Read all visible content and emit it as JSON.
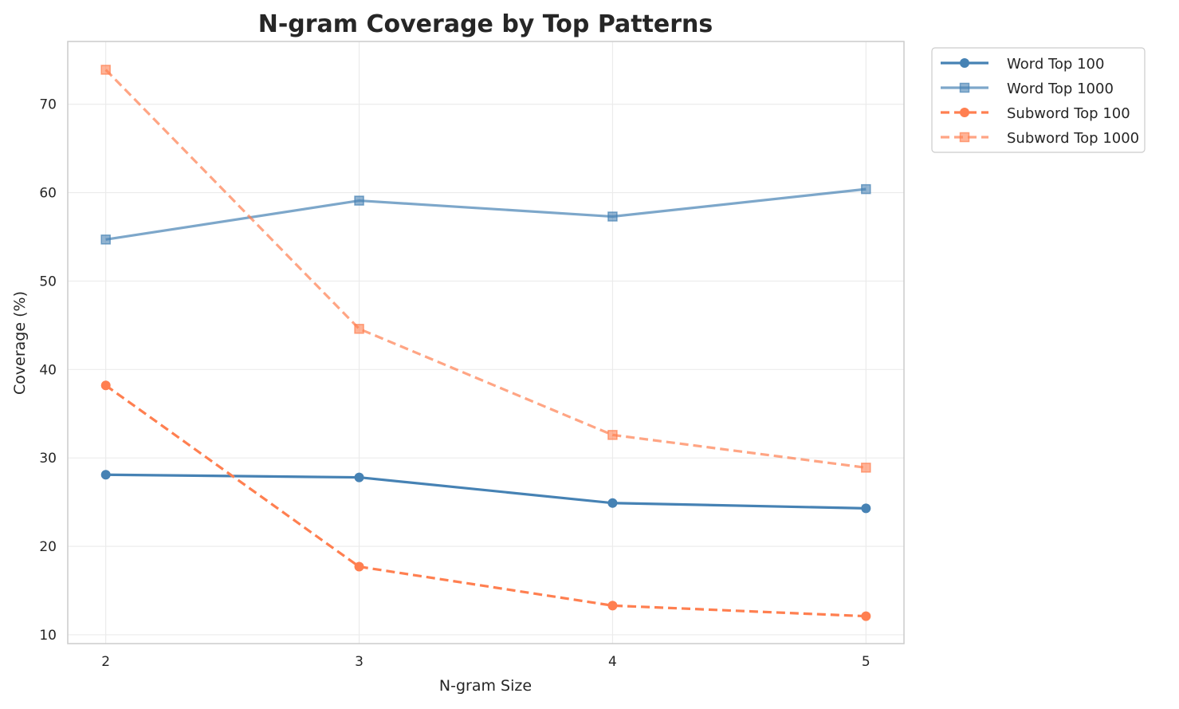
{
  "chart_data": {
    "type": "line",
    "title": "N-gram Coverage by Top Patterns",
    "xlabel": "N-gram Size",
    "ylabel": "Coverage (%)",
    "x": [
      2,
      3,
      4,
      5
    ],
    "xticks": [
      "2",
      "3",
      "4",
      "5"
    ],
    "yticks": [
      "10",
      "20",
      "30",
      "40",
      "50",
      "60",
      "70"
    ],
    "xlim": [
      1.85,
      5.15
    ],
    "ylim": [
      9.0,
      77.1
    ],
    "grid": true,
    "legend_placement": "outside-top-right",
    "series": [
      {
        "name": "Word Top 100",
        "values": [
          28.1,
          27.8,
          24.9,
          24.3
        ],
        "color": "#4682b4",
        "opacity": 1.0,
        "dashed": false,
        "marker": "circle"
      },
      {
        "name": "Word Top 1000",
        "values": [
          54.7,
          59.1,
          57.3,
          60.4
        ],
        "color": "#4682b4",
        "opacity": 0.7,
        "dashed": false,
        "marker": "square"
      },
      {
        "name": "Subword Top 100",
        "values": [
          38.2,
          17.7,
          13.3,
          12.1
        ],
        "color": "#ff7f50",
        "opacity": 1.0,
        "dashed": true,
        "marker": "circle"
      },
      {
        "name": "Subword Top 1000",
        "values": [
          73.9,
          44.6,
          32.6,
          28.9
        ],
        "color": "#ff7f50",
        "opacity": 0.7,
        "dashed": true,
        "marker": "square"
      }
    ]
  }
}
